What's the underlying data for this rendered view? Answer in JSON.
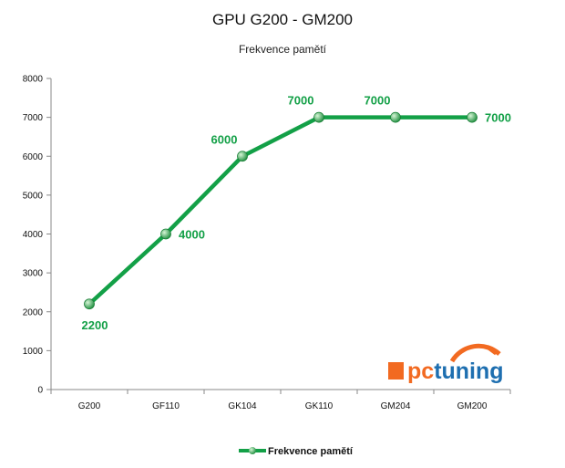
{
  "chart_data": {
    "type": "line",
    "title": "GPU G200 - GM200",
    "subtitle": "Frekvence pamětí",
    "categories": [
      "G200",
      "GF110",
      "GK104",
      "GK110",
      "GM204",
      "GM200"
    ],
    "series": [
      {
        "name": "Frekvence pamětí",
        "values": [
          2200,
          4000,
          6000,
          7000,
          7000,
          7000
        ]
      }
    ],
    "data_labels": [
      "2200",
      "4000",
      "6000",
      "7000",
      "7000",
      "7000"
    ],
    "ylim": [
      0,
      8000
    ],
    "yticks": [
      "0",
      "1000",
      "2000",
      "3000",
      "4000",
      "5000",
      "6000",
      "7000",
      "8000"
    ],
    "grid": false,
    "legend_position": "bottom",
    "series_color": "#13a047",
    "label_color": "#13a047"
  },
  "watermark": {
    "brand": "pctuning",
    "brand_prefix": "pc",
    "brand_suffix": "tuning",
    "orange": "#f26a21",
    "blue": "#1e6fb0"
  }
}
